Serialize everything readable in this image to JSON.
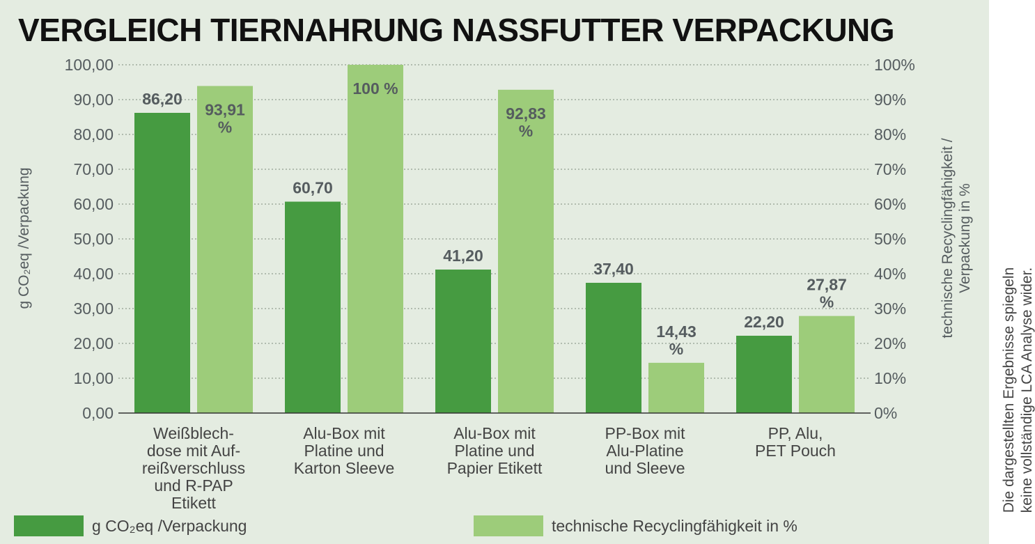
{
  "chart_data": {
    "type": "bar",
    "title": "VERGLEICH TIERNAHRUNG NASSFUTTER VERPACKUNG",
    "categories": [
      [
        "Weißblech-",
        "dose mit Auf-",
        "reißverschluss",
        "und R-PAP",
        "Etikett"
      ],
      [
        "Alu-Box mit",
        "Platine und",
        "Karton Sleeve"
      ],
      [
        "Alu-Box mit",
        "Platine und",
        "Papier Etikett"
      ],
      [
        "PP-Box mit",
        "Alu-Platine",
        "und Sleeve"
      ],
      [
        "PP, Alu,",
        "PET Pouch"
      ]
    ],
    "series": [
      {
        "name": "g CO₂eq /Verpackung",
        "color": "#469b41",
        "axis": "left",
        "values": [
          86.2,
          60.7,
          41.2,
          37.4,
          22.2
        ],
        "labels": [
          "86,20",
          "60,70",
          "41,20",
          "37,40",
          "22,20"
        ]
      },
      {
        "name": "technische Recyclingfähigkeit in %",
        "color": "#9dcc7a",
        "axis": "right",
        "values": [
          93.91,
          100,
          92.83,
          14.43,
          27.87
        ],
        "labels": [
          [
            "93,91",
            "%"
          ],
          [
            "100 %"
          ],
          [
            "92,83",
            "%"
          ],
          [
            "14,43",
            "%"
          ],
          [
            "27,87",
            "%"
          ]
        ]
      }
    ],
    "ylabel": "g CO₂eq /Verpackung",
    "ylabel_right": [
      "technische Recyclingfähigkeit /",
      "Verpackung in %"
    ],
    "ylim": [
      0,
      100
    ],
    "ylim_right": [
      0,
      100
    ],
    "yticks": [
      "0,00",
      "10,00",
      "20,00",
      "30,00",
      "40,00",
      "50,00",
      "60,00",
      "70,00",
      "80,00",
      "90,00",
      "100,00"
    ],
    "yticks_right": [
      "0%",
      "10%",
      "20%",
      "30%",
      "40%",
      "50%",
      "60%",
      "70%",
      "80%",
      "90%",
      "100%"
    ],
    "grid": "horizontal dotted",
    "legend": "bottom"
  },
  "legend": {
    "co2": "g CO₂eq /Verpackung",
    "recycling": "technische Recyclingfähigkeit in %"
  },
  "side_note": [
    "Die dargestellten Ergebnisse spiegeln",
    "keine vollständige LCA Analyse wider."
  ],
  "colors": {
    "background": "#e4ece1",
    "dark_green": "#469b41",
    "light_green": "#9dcc7a",
    "label_gray": "#555c5f"
  }
}
